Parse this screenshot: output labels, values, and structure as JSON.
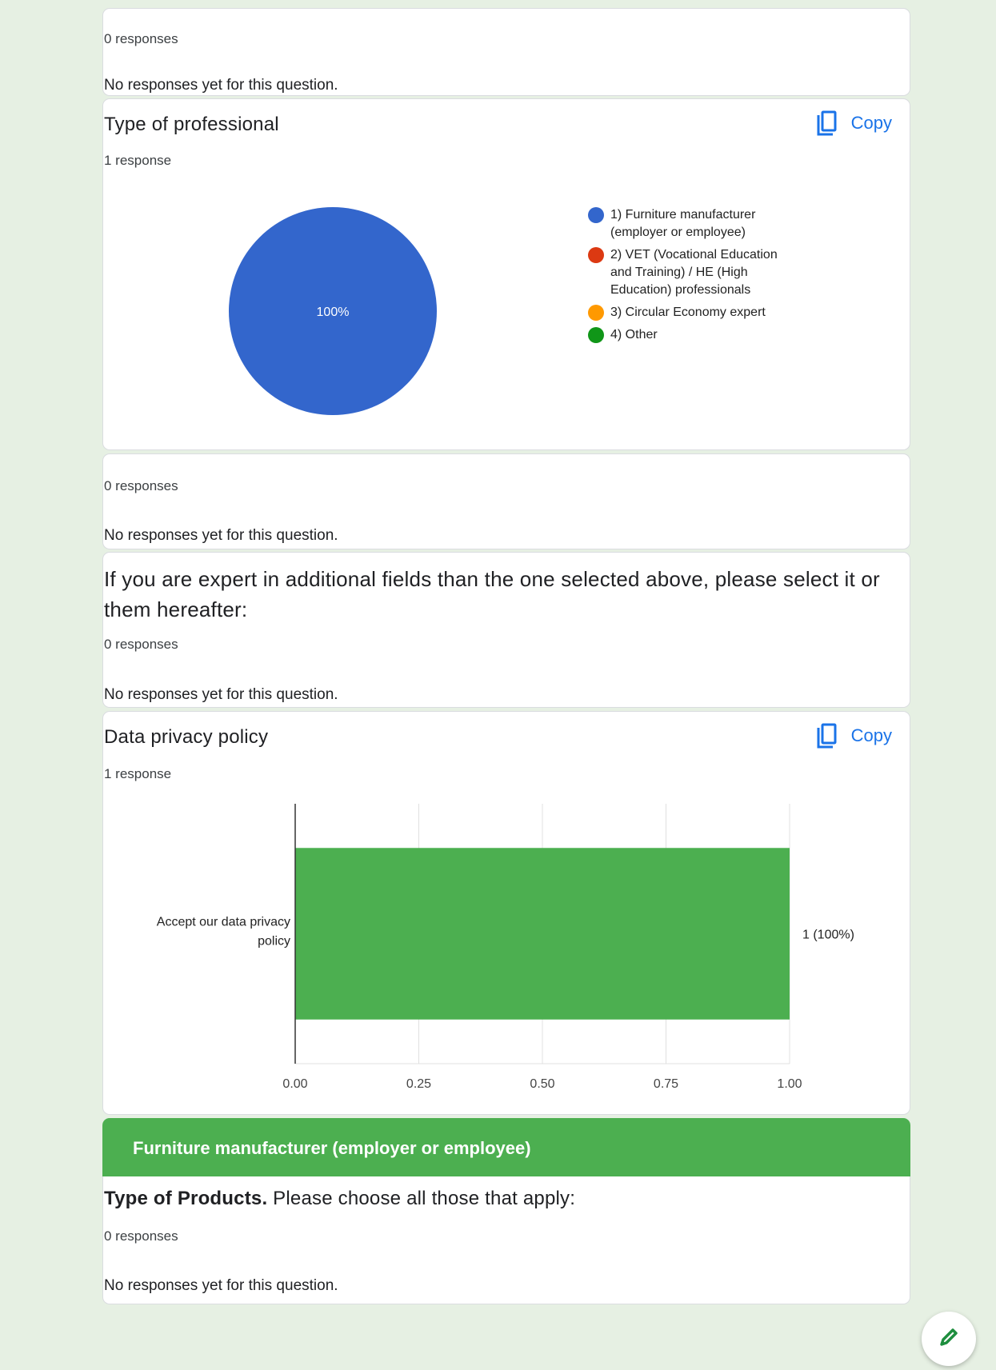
{
  "cards": {
    "card1": {
      "responses": "0 responses",
      "empty": "No responses yet for this question."
    },
    "professional": {
      "title": "Type of professional",
      "responses": "1 response",
      "copy_label": "Copy"
    },
    "card3": {
      "responses": "0 responses",
      "empty": "No responses yet for this question."
    },
    "additional": {
      "title_line1": "If you are expert in additional fields than the one selected above, please select it or",
      "title_line2": "them hereafter:",
      "responses": "0 responses",
      "empty": "No responses yet for this question."
    },
    "privacy": {
      "title": "Data privacy policy",
      "responses": "1 response",
      "copy_label": "Copy"
    },
    "section": {
      "title": "Furniture manufacturer (employer or employee)"
    },
    "products": {
      "title_bold": "Type of Products.",
      "title_rest": " Please choose all those that apply:",
      "responses": "0 responses",
      "empty": "No responses yet for this question."
    }
  },
  "colors": {
    "blue": "#3366cc",
    "red": "#dc3912",
    "orange": "#ff9900",
    "green": "#109618",
    "bar_green": "#4caf50",
    "accent": "#1a73e8"
  },
  "icons": {
    "copy": "copy-icon",
    "edit": "pencil-icon"
  },
  "chart_data": [
    {
      "type": "pie",
      "categories": [
        "1) Furniture manufacturer (employer or employee)",
        "2) VET (Vocational Education and Training) / HE (High Education) professionals",
        "3) Circular Economy expert",
        "4) Other"
      ],
      "legend_lines": [
        [
          "1) Furniture manufacturer",
          "(employer or employee)"
        ],
        [
          "2) VET (Vocational Education",
          "and Training) / HE (High",
          "Education) professionals"
        ],
        [
          "3) Circular Economy expert"
        ],
        [
          "4) Other"
        ]
      ],
      "values": [
        1,
        0,
        0,
        0
      ],
      "slice_labels": [
        "100%"
      ],
      "legend_position": "right"
    },
    {
      "type": "bar",
      "orientation": "horizontal",
      "categories": [
        "Accept our data privacy policy"
      ],
      "category_label_lines": [
        "Accept our data privacy",
        "policy"
      ],
      "values": [
        1
      ],
      "value_labels": [
        "1 (100%)"
      ],
      "xlim": [
        0,
        1
      ],
      "xticks": [
        "0.00",
        "0.25",
        "0.50",
        "0.75",
        "1.00"
      ],
      "xtick_values": [
        0,
        0.25,
        0.5,
        0.75,
        1
      ],
      "grid": true
    }
  ]
}
